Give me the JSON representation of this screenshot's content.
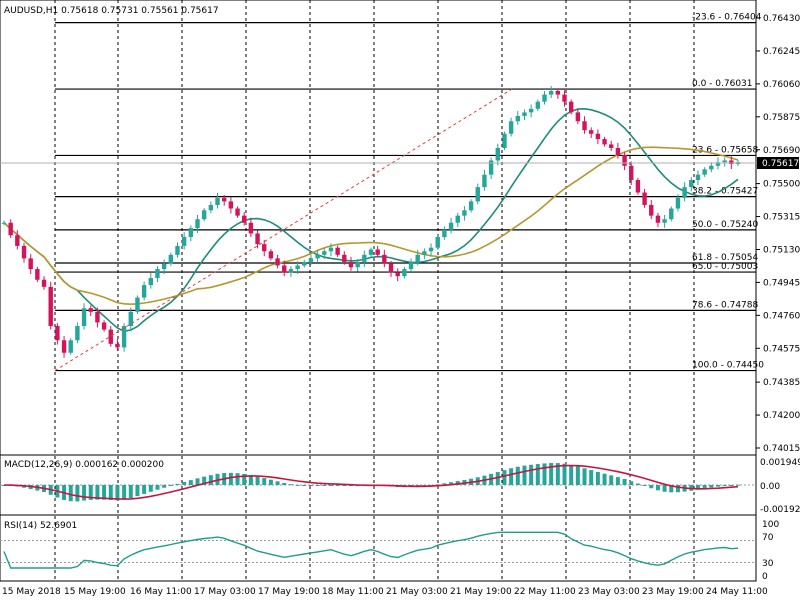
{
  "symbol_header": "AUDUSD,H1  0.75618 0.75731 0.75561 0.75617",
  "current_price": "0.75617",
  "colors": {
    "bull": "#26a69a",
    "bear": "#d5135a",
    "ma_fast": "#1e8c7a",
    "ma_slow": "#b8962e",
    "macd_line": "#c8143c",
    "rsi_line": "#1e9e8a",
    "fib_trend": "#e0413b"
  },
  "price_axis": {
    "labels": [
      "0.76430",
      "0.76245",
      "0.76060",
      "0.75875",
      "0.75690",
      "0.75500",
      "0.75315",
      "0.75130",
      "0.74945",
      "0.74760",
      "0.74575",
      "0.74385",
      "0.74200",
      "0.74015"
    ]
  },
  "fibonacci": [
    {
      "label": "-23.6 - 0.76404",
      "price": 0.76404
    },
    {
      "label": "0.0 - 0.76031",
      "price": 0.76031
    },
    {
      "label": "23.6 - 0.75658",
      "price": 0.75658
    },
    {
      "label": "38.2 - 0.75427",
      "price": 0.75427
    },
    {
      "label": "50.0 - 0.75240",
      "price": 0.7524
    },
    {
      "label": "61.8 - 0.75054",
      "price": 0.75054
    },
    {
      "label": "65.0 - 0.75003",
      "price": 0.75003
    },
    {
      "label": "78.6 - 0.74788",
      "price": 0.74788
    },
    {
      "label": "100.0 - 0.74450",
      "price": 0.7445
    }
  ],
  "macd": {
    "header": "MACD(12,26,9) 0.000162 0.000200",
    "axis": [
      "0.001949",
      "0.00",
      "-0.001923"
    ]
  },
  "rsi": {
    "header": "RSI(14) 52.6901",
    "axis": [
      "100",
      "70",
      "30",
      "0"
    ]
  },
  "time_axis": [
    "15 May 2018",
    "15 May 19:00",
    "16 May 11:00",
    "17 May 03:00",
    "17 May 19:00",
    "18 May 11:00",
    "21 May 03:00",
    "21 May 19:00",
    "22 May 11:00",
    "23 May 03:00",
    "23 May 19:00",
    "24 May 11:00"
  ],
  "chart_data": {
    "type": "candlestick",
    "symbol": "AUDUSD",
    "timeframe": "H1",
    "ylim": [
      0.74015,
      0.7643
    ],
    "closes": [
      0.7528,
      0.7521,
      0.7515,
      0.7508,
      0.7502,
      0.7496,
      0.7492,
      0.747,
      0.7462,
      0.7455,
      0.7462,
      0.747,
      0.748,
      0.7478,
      0.7472,
      0.7468,
      0.746,
      0.7458,
      0.747,
      0.7478,
      0.7486,
      0.7493,
      0.7497,
      0.7502,
      0.7505,
      0.751,
      0.7515,
      0.752,
      0.7525,
      0.753,
      0.7535,
      0.7538,
      0.7542,
      0.754,
      0.7536,
      0.7532,
      0.7528,
      0.7522,
      0.7516,
      0.7512,
      0.7508,
      0.7504,
      0.75,
      0.7502,
      0.7504,
      0.7506,
      0.7508,
      0.751,
      0.7512,
      0.7514,
      0.751,
      0.7506,
      0.7503,
      0.7506,
      0.751,
      0.7513,
      0.751,
      0.7505,
      0.75,
      0.7498,
      0.7502,
      0.7506,
      0.751,
      0.7512,
      0.7514,
      0.752,
      0.7524,
      0.7528,
      0.7532,
      0.7535,
      0.754,
      0.7548,
      0.7555,
      0.7563,
      0.757,
      0.7578,
      0.7585,
      0.7588,
      0.759,
      0.7592,
      0.7596,
      0.76,
      0.7602,
      0.76,
      0.7596,
      0.759,
      0.7585,
      0.758,
      0.7578,
      0.7575,
      0.7572,
      0.757,
      0.7566,
      0.756,
      0.7552,
      0.7545,
      0.7538,
      0.7532,
      0.7528,
      0.753,
      0.7536,
      0.7542,
      0.7548,
      0.7552,
      0.7555,
      0.7558,
      0.756,
      0.7562,
      0.7563,
      0.7561,
      0.7562
    ]
  }
}
